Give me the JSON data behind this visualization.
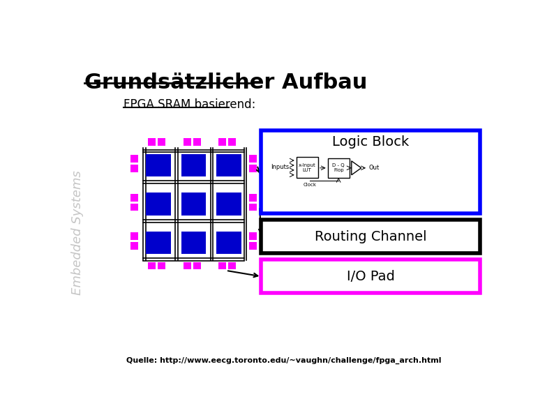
{
  "title": "Grundsätzlicher Aufbau",
  "subtitle": "FPGA SRAM basierend:",
  "watermark": "Embedded Systems",
  "source": "Quelle: http://www.eecg.toronto.edu/~vaughn/challenge/fpga_arch.html",
  "bg_color": "#ffffff",
  "title_color": "#000000",
  "subtitle_color": "#000000",
  "watermark_color": "#bbbbbb",
  "logic_block_color": "#0000cc",
  "io_pad_color": "#ff00ff",
  "logic_block_box_color": "#0000ff",
  "routing_channel_box_color": "#000000",
  "io_pad_box_color": "#ff00ff",
  "label_logic_block": "Logic Block",
  "label_routing_channel": "Routing Channel",
  "label_io_pad": "I/O Pad",
  "title_fontsize": 22,
  "subtitle_fontsize": 12,
  "label_fontsize": 14,
  "source_fontsize": 8
}
